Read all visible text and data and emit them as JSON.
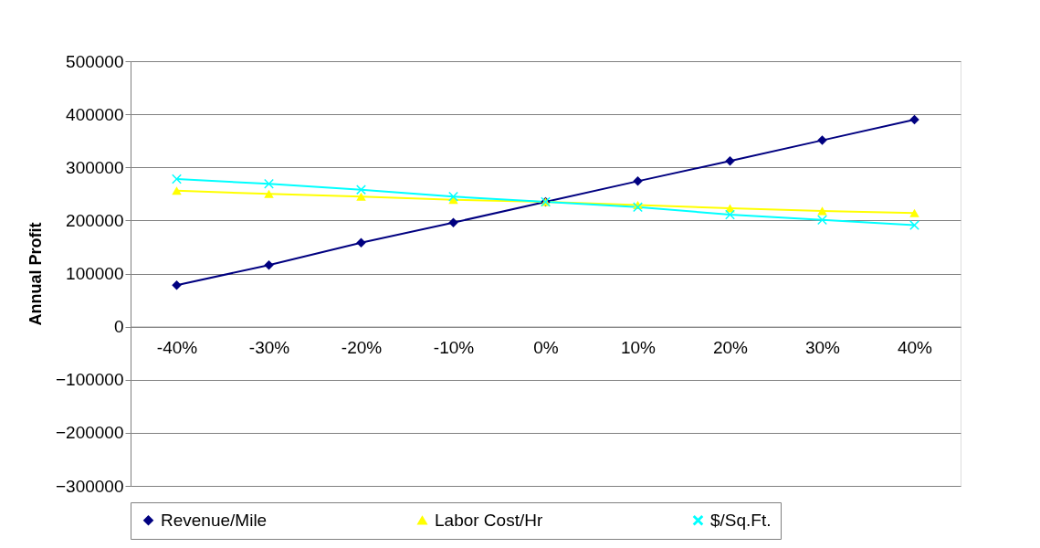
{
  "chart_data": {
    "type": "line",
    "ylabel": "Annual Profit",
    "categories": [
      "-40%",
      "-30%",
      "-20%",
      "-10%",
      "0%",
      "10%",
      "20%",
      "30%",
      "40%"
    ],
    "series": [
      {
        "name": "Revenue/Mile",
        "color": "#000080",
        "marker": "diamond",
        "values": [
          78000,
          116000,
          158000,
          196000,
          235000,
          274000,
          312000,
          351000,
          390000
        ]
      },
      {
        "name": "Labor Cost/Hr",
        "color": "#ffff00",
        "marker": "triangle",
        "values": [
          256000,
          250000,
          245000,
          239000,
          235000,
          229000,
          223000,
          218000,
          214000
        ]
      },
      {
        "name": "$/Sq.Ft.",
        "color": "#00ffff",
        "marker": "cross",
        "values": [
          278000,
          269000,
          258000,
          245000,
          235000,
          225000,
          211000,
          201000,
          191000
        ]
      }
    ],
    "ylim": [
      -300000,
      500000
    ],
    "yticks": [
      -300000,
      -200000,
      -100000,
      0,
      100000,
      200000,
      300000,
      400000,
      500000
    ],
    "grid": "y",
    "legend": "bottom"
  }
}
